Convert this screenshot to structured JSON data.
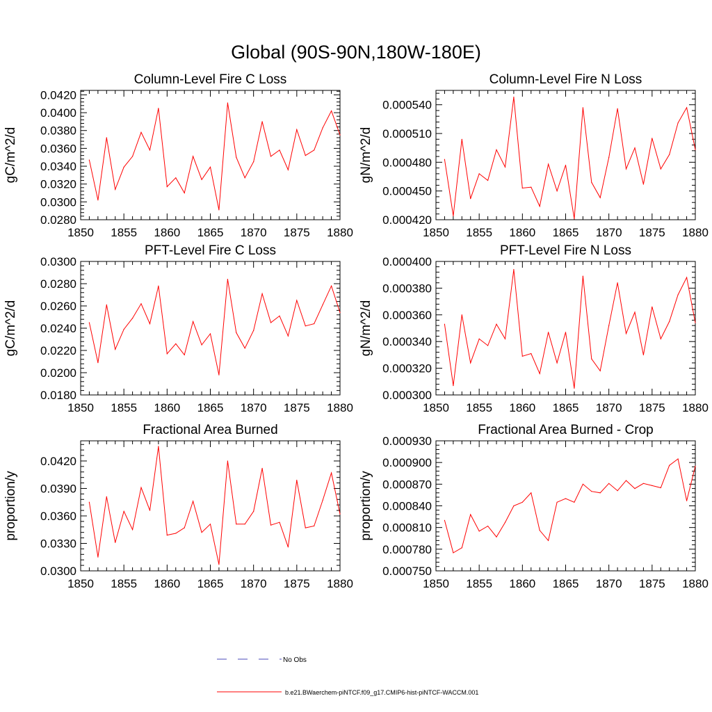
{
  "title": "Global (90S-90N,180W-180E)",
  "colors": {
    "model_line": "#ff0000",
    "obs_line": "#4a4ab8",
    "axis": "#000000"
  },
  "legend": {
    "obs_label": "No Obs",
    "model_label": "b.e21.BWaerchem-piNTCF.f09_g17.CMIP6-hist-piNTCF-WACCM.001"
  },
  "chart_data": [
    {
      "type": "line",
      "title": "Column-Level Fire C Loss",
      "ylabel": "gC/m^2/d",
      "xlim": [
        1850,
        1880
      ],
      "ylim": [
        0.028,
        0.0425
      ],
      "xticks": [
        "1850",
        "1855",
        "1860",
        "1865",
        "1870",
        "1875",
        "1880"
      ],
      "yticks": [
        "0.0280",
        "0.0300",
        "0.0320",
        "0.0340",
        "0.0360",
        "0.0380",
        "0.0400",
        "0.0420"
      ],
      "series": [
        {
          "x": [
            1851,
            1852,
            1853,
            1854,
            1855,
            1856,
            1857,
            1858,
            1859,
            1860,
            1861,
            1862,
            1863,
            1864,
            1865,
            1866,
            1867,
            1868,
            1869,
            1870,
            1871,
            1872,
            1873,
            1874,
            1875,
            1876,
            1877,
            1878,
            1879,
            1880
          ],
          "values": [
            0.0347,
            0.0302,
            0.0372,
            0.0314,
            0.0339,
            0.0351,
            0.0378,
            0.0358,
            0.0405,
            0.0317,
            0.0327,
            0.031,
            0.0351,
            0.0325,
            0.0339,
            0.0291,
            0.0411,
            0.035,
            0.0327,
            0.0345,
            0.039,
            0.0351,
            0.0358,
            0.0336,
            0.0381,
            0.0352,
            0.0358,
            0.0383,
            0.0402,
            0.0375
          ]
        }
      ]
    },
    {
      "type": "line",
      "title": "Column-Level Fire N Loss",
      "ylabel": "gN/m^2/d",
      "xlim": [
        1850,
        1880
      ],
      "ylim": [
        0.00042,
        0.000555
      ],
      "xticks": [
        "1850",
        "1855",
        "1860",
        "1865",
        "1870",
        "1875",
        "1880"
      ],
      "yticks": [
        "0.000420",
        "0.000450",
        "0.000480",
        "0.000510",
        "0.000540"
      ],
      "series": [
        {
          "x": [
            1851,
            1852,
            1853,
            1854,
            1855,
            1856,
            1857,
            1858,
            1859,
            1860,
            1861,
            1862,
            1863,
            1864,
            1865,
            1866,
            1867,
            1868,
            1869,
            1870,
            1871,
            1872,
            1873,
            1874,
            1875,
            1876,
            1877,
            1878,
            1879,
            1880
          ],
          "values": [
            0.000483,
            0.000424,
            0.000504,
            0.000442,
            0.000468,
            0.000461,
            0.000493,
            0.000475,
            0.000548,
            0.000453,
            0.000454,
            0.000434,
            0.000478,
            0.00045,
            0.000477,
            0.000421,
            0.000537,
            0.000459,
            0.000443,
            0.000485,
            0.000536,
            0.000473,
            0.000495,
            0.000457,
            0.000505,
            0.000473,
            0.000488,
            0.000521,
            0.000537,
            0.000493
          ]
        }
      ]
    },
    {
      "type": "line",
      "title": "PFT-Level Fire C Loss",
      "ylabel": "gC/m^2/d",
      "xlim": [
        1850,
        1880
      ],
      "ylim": [
        0.018,
        0.03
      ],
      "xticks": [
        "1850",
        "1855",
        "1860",
        "1865",
        "1870",
        "1875",
        "1880"
      ],
      "yticks": [
        "0.0180",
        "0.0200",
        "0.0220",
        "0.0240",
        "0.0260",
        "0.0280",
        "0.0300"
      ],
      "series": [
        {
          "x": [
            1851,
            1852,
            1853,
            1854,
            1855,
            1856,
            1857,
            1858,
            1859,
            1860,
            1861,
            1862,
            1863,
            1864,
            1865,
            1866,
            1867,
            1868,
            1869,
            1870,
            1871,
            1872,
            1873,
            1874,
            1875,
            1876,
            1877,
            1878,
            1879,
            1880
          ],
          "values": [
            0.0245,
            0.0209,
            0.0261,
            0.0221,
            0.0239,
            0.0249,
            0.0262,
            0.0244,
            0.0278,
            0.0217,
            0.0226,
            0.0216,
            0.0246,
            0.0225,
            0.0235,
            0.0198,
            0.0284,
            0.0236,
            0.0222,
            0.0238,
            0.0271,
            0.0245,
            0.0251,
            0.0233,
            0.0265,
            0.0242,
            0.0244,
            0.0261,
            0.0278,
            0.0254
          ]
        }
      ]
    },
    {
      "type": "line",
      "title": "PFT-Level Fire N Loss",
      "ylabel": "gN/m^2/d",
      "xlim": [
        1850,
        1880
      ],
      "ylim": [
        0.0003,
        0.0004
      ],
      "xticks": [
        "1850",
        "1855",
        "1860",
        "1865",
        "1870",
        "1875",
        "1880"
      ],
      "yticks": [
        "0.000300",
        "0.000320",
        "0.000340",
        "0.000360",
        "0.000380",
        "0.000400"
      ],
      "series": [
        {
          "x": [
            1851,
            1852,
            1853,
            1854,
            1855,
            1856,
            1857,
            1858,
            1859,
            1860,
            1861,
            1862,
            1863,
            1864,
            1865,
            1866,
            1867,
            1868,
            1869,
            1870,
            1871,
            1872,
            1873,
            1874,
            1875,
            1876,
            1877,
            1878,
            1879,
            1880
          ],
          "values": [
            0.000353,
            0.000307,
            0.00036,
            0.000324,
            0.000342,
            0.000337,
            0.000353,
            0.000342,
            0.000394,
            0.000329,
            0.000331,
            0.000316,
            0.000347,
            0.000324,
            0.000347,
            0.000305,
            0.000389,
            0.000327,
            0.000318,
            0.000352,
            0.000384,
            0.000346,
            0.000362,
            0.00033,
            0.000366,
            0.000342,
            0.000355,
            0.000375,
            0.000388,
            0.000354
          ]
        }
      ]
    },
    {
      "type": "line",
      "title": "Fractional Area Burned",
      "ylabel": "proportion/y",
      "xlim": [
        1850,
        1880
      ],
      "ylim": [
        0.03,
        0.0442
      ],
      "xticks": [
        "1850",
        "1855",
        "1860",
        "1865",
        "1870",
        "1875",
        "1880"
      ],
      "yticks": [
        "0.0300",
        "0.0330",
        "0.0360",
        "0.0390",
        "0.0420"
      ],
      "series": [
        {
          "x": [
            1851,
            1852,
            1853,
            1854,
            1855,
            1856,
            1857,
            1858,
            1859,
            1860,
            1861,
            1862,
            1863,
            1864,
            1865,
            1866,
            1867,
            1868,
            1869,
            1870,
            1871,
            1872,
            1873,
            1874,
            1875,
            1876,
            1877,
            1878,
            1879,
            1880
          ],
          "values": [
            0.0375,
            0.0315,
            0.0381,
            0.0331,
            0.0365,
            0.0345,
            0.0391,
            0.0366,
            0.0436,
            0.0339,
            0.0341,
            0.0347,
            0.0376,
            0.0342,
            0.0351,
            0.0307,
            0.042,
            0.0351,
            0.0351,
            0.0365,
            0.0412,
            0.035,
            0.0353,
            0.0326,
            0.0399,
            0.0347,
            0.0349,
            0.0377,
            0.0407,
            0.0362
          ]
        }
      ]
    },
    {
      "type": "line",
      "title": "Fractional Area Burned - Crop",
      "ylabel": "proportion/y",
      "xlim": [
        1850,
        1880
      ],
      "ylim": [
        0.00075,
        0.00093
      ],
      "xticks": [
        "1850",
        "1855",
        "1860",
        "1865",
        "1870",
        "1875",
        "1880"
      ],
      "yticks": [
        "0.000750",
        "0.000780",
        "0.000810",
        "0.000840",
        "0.000870",
        "0.000900",
        "0.000930"
      ],
      "series": [
        {
          "x": [
            1851,
            1852,
            1853,
            1854,
            1855,
            1856,
            1857,
            1858,
            1859,
            1860,
            1861,
            1862,
            1863,
            1864,
            1865,
            1866,
            1867,
            1868,
            1869,
            1870,
            1871,
            1872,
            1873,
            1874,
            1875,
            1876,
            1877,
            1878,
            1879,
            1880
          ],
          "values": [
            0.00082,
            0.000775,
            0.000782,
            0.000828,
            0.000805,
            0.000812,
            0.000797,
            0.000817,
            0.00084,
            0.000845,
            0.000858,
            0.000806,
            0.000792,
            0.000845,
            0.00085,
            0.000845,
            0.00087,
            0.00086,
            0.000858,
            0.000871,
            0.000861,
            0.000875,
            0.000864,
            0.000871,
            0.000868,
            0.000865,
            0.000896,
            0.000905,
            0.000847,
            0.000895
          ]
        }
      ]
    }
  ]
}
